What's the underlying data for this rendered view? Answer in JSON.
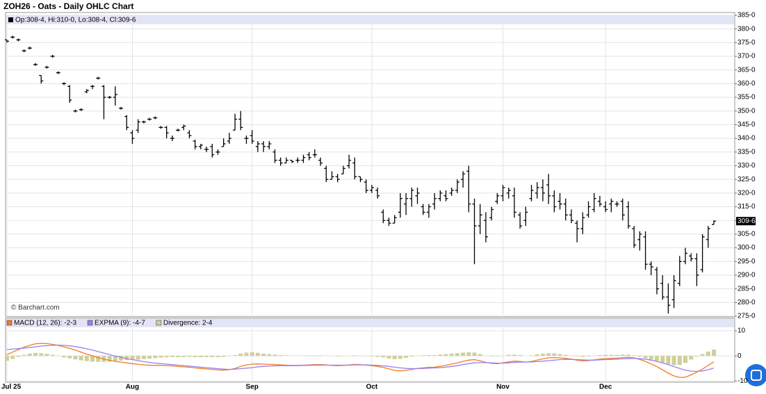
{
  "chart_data": [
    {
      "type": "ohlc",
      "title": "ZOH26 - Oats - Daily OHLC Chart",
      "info": "Op:308-4, Hi:310-0, Lo:308-4, Cl:309-6",
      "watermark": "© Barchart.com",
      "color": "#000000",
      "categories": [
        "Jul 25",
        null,
        null,
        null,
        null,
        null,
        null,
        null,
        null,
        null,
        null,
        null,
        null,
        null,
        null,
        null,
        null,
        null,
        null,
        null,
        null,
        null,
        "Aug",
        null,
        null,
        null,
        null,
        null,
        null,
        null,
        null,
        null,
        null,
        null,
        null,
        null,
        null,
        null,
        null,
        null,
        null,
        null,
        null,
        "Sep",
        null,
        null,
        null,
        null,
        null,
        null,
        null,
        null,
        null,
        null,
        null,
        null,
        null,
        null,
        null,
        null,
        null,
        null,
        null,
        null,
        "Oct",
        null,
        null,
        null,
        null,
        null,
        null,
        null,
        null,
        null,
        null,
        null,
        null,
        null,
        null,
        null,
        null,
        null,
        null,
        null,
        null,
        null,
        null,
        "Nov",
        null,
        null,
        null,
        null,
        null,
        null,
        null,
        null,
        null,
        null,
        null,
        null,
        null,
        null,
        null,
        null,
        null,
        "Dec",
        null,
        null,
        null,
        null,
        null,
        null,
        null,
        null,
        null,
        null,
        null,
        null,
        null,
        null,
        null,
        null,
        null,
        null,
        null
      ],
      "open": [
        376,
        377,
        376,
        372,
        373,
        367,
        363,
        366,
        370,
        364,
        360,
        359,
        350,
        350.5,
        357,
        359,
        362,
        359,
        355,
        355,
        351,
        348,
        342,
        343,
        346,
        347,
        347.5,
        344,
        344,
        340,
        343,
        344,
        342,
        339,
        337,
        336,
        337,
        335,
        337,
        339,
        343,
        347,
        340,
        341,
        337,
        338,
        337,
        335,
        332,
        331,
        332,
        332,
        332,
        334,
        334,
        332,
        329,
        325,
        326,
        327,
        330,
        331,
        326,
        324,
        321,
        321,
        313,
        310,
        309,
        313,
        316,
        318,
        319,
        315,
        313,
        316,
        318,
        319,
        320,
        321,
        325,
        328,
        316,
        308,
        310,
        311,
        317,
        319,
        320,
        319,
        312,
        310,
        318,
        320,
        322,
        323,
        319,
        317,
        316,
        312,
        309,
        307,
        312,
        314,
        317,
        315,
        316,
        316,
        317,
        315,
        307,
        303,
        304,
        294,
        292,
        287,
        282,
        281,
        287,
        295,
        297,
        296,
        292,
        303,
        308.5
      ],
      "high": [
        376,
        377.5,
        376.5,
        372.5,
        373.5,
        367.5,
        363,
        366.5,
        370.5,
        364.5,
        360.5,
        359.5,
        350.5,
        351,
        358,
        359.5,
        362.5,
        359.5,
        355.5,
        359,
        351.5,
        348.5,
        343,
        347,
        346.5,
        347.5,
        348,
        344.5,
        344.5,
        341,
        343.5,
        345,
        343,
        339.5,
        338,
        337,
        338,
        336,
        340,
        342,
        349,
        350,
        341,
        343,
        339,
        339,
        339,
        336,
        333,
        333,
        332,
        333,
        334,
        335,
        336,
        333,
        330,
        328,
        327,
        330,
        334,
        333,
        326,
        325,
        323,
        322,
        314,
        311,
        312,
        320,
        320,
        322,
        322,
        316,
        316,
        320,
        321,
        321,
        322,
        325,
        328,
        330,
        318,
        316,
        313,
        315,
        320,
        323,
        322,
        322,
        313,
        315,
        323,
        324,
        325,
        327,
        321,
        320,
        318,
        314,
        310,
        313,
        317,
        320,
        319,
        317,
        318,
        317,
        318,
        317,
        308,
        306,
        306,
        295,
        293,
        290,
        287,
        290,
        297,
        300,
        298,
        298,
        305,
        308,
        310
      ],
      "low": [
        375,
        376.5,
        375.5,
        371.5,
        372.5,
        366.5,
        360,
        365.5,
        369.5,
        363.5,
        359.5,
        353,
        349.5,
        350,
        356.5,
        358,
        361.5,
        347,
        354.5,
        352,
        350.5,
        343,
        338,
        342,
        345.5,
        346.5,
        347,
        343.5,
        340,
        339,
        342.5,
        343,
        340,
        336,
        336,
        335,
        333,
        334,
        337,
        338,
        343,
        343,
        338,
        338,
        335,
        335,
        336,
        331,
        330,
        331,
        331,
        331,
        331,
        332,
        333,
        330,
        324,
        325,
        324,
        327,
        329,
        325,
        324,
        320,
        320,
        318,
        309,
        308,
        309,
        311,
        312,
        315,
        316,
        312,
        311,
        314,
        317,
        317,
        319,
        320,
        322,
        313,
        294,
        305,
        302,
        310,
        316,
        317,
        318,
        311,
        307,
        308,
        317,
        318,
        317,
        316,
        313,
        314,
        310,
        309,
        302,
        305,
        311,
        313,
        315,
        313,
        313,
        315,
        310,
        307,
        300,
        299,
        292,
        290,
        283,
        281,
        276,
        278,
        286,
        294,
        295,
        286,
        291,
        300,
        308.5
      ],
      "close": [
        375.5,
        377,
        376,
        372,
        373,
        367,
        361,
        366,
        370,
        364,
        360,
        354,
        350,
        350.5,
        357.5,
        359,
        362,
        355,
        355,
        356,
        351,
        344,
        340,
        346,
        346,
        347,
        347.5,
        344,
        342,
        340,
        343,
        344.5,
        341,
        337,
        337.5,
        336,
        334,
        335,
        338,
        340,
        347,
        344,
        340,
        339,
        338,
        337,
        338,
        332,
        331,
        332,
        331.5,
        332,
        333,
        333,
        334,
        331,
        325,
        326,
        325,
        329,
        332,
        326,
        325,
        321,
        322,
        319,
        310,
        309,
        311,
        318,
        318,
        321,
        320,
        313,
        315,
        318,
        320,
        318,
        321,
        324,
        327,
        316,
        308,
        312,
        304,
        314,
        319,
        322,
        321,
        313,
        308,
        313,
        321,
        322,
        320,
        319,
        315,
        316,
        312,
        310,
        307,
        311,
        315,
        318,
        316,
        314,
        317,
        316,
        312,
        308,
        301,
        305,
        294,
        293,
        285,
        282,
        279,
        288,
        295,
        298,
        296,
        290,
        304,
        307,
        309.75
      ],
      "last_price": {
        "value": 309.75,
        "label": "309-6"
      },
      "ylim": [
        274.75,
        386
      ],
      "yticks": [
        {
          "value": 275,
          "label": "275-0"
        },
        {
          "value": 280,
          "label": "280-0"
        },
        {
          "value": 285,
          "label": "285-0"
        },
        {
          "value": 290,
          "label": "290-0"
        },
        {
          "value": 295,
          "label": "295-0"
        },
        {
          "value": 300,
          "label": "300-0"
        },
        {
          "value": 305,
          "label": "305-0"
        },
        {
          "value": 310,
          "label": "310-0"
        },
        {
          "value": 315,
          "label": "315-0"
        },
        {
          "value": 320,
          "label": "320-0"
        },
        {
          "value": 325,
          "label": "325-0"
        },
        {
          "value": 330,
          "label": "330-0"
        },
        {
          "value": 335,
          "label": "335-0"
        },
        {
          "value": 340,
          "label": "340-0"
        },
        {
          "value": 345,
          "label": "345-0"
        },
        {
          "value": 350,
          "label": "350-0"
        },
        {
          "value": 355,
          "label": "355-0"
        },
        {
          "value": 360,
          "label": "360-0"
        },
        {
          "value": 365,
          "label": "365-0"
        },
        {
          "value": 370,
          "label": "370-0"
        },
        {
          "value": 375,
          "label": "375-0"
        },
        {
          "value": 380,
          "label": "380-0"
        },
        {
          "value": 385,
          "label": "385-0"
        }
      ],
      "grid": true
    },
    {
      "type": "macd",
      "ylim": [
        -10.5,
        15
      ],
      "yticks": [
        -10,
        0,
        10
      ],
      "grid": true,
      "series": [
        {
          "name": "MACD (12, 26): -2-3",
          "kind": "line",
          "color": "#f47a20",
          "values": [
            0.5,
            1.5,
            2.5,
            3.5,
            4.2,
            4.8,
            5,
            4.9,
            4.6,
            4.2,
            3.6,
            3,
            2.3,
            1.5,
            0.7,
            0,
            -0.7,
            -1.3,
            -1.8,
            -2.2,
            -2.5,
            -2.8,
            -3.1,
            -3.4,
            -3.6,
            -3.7,
            -3.8,
            -3.8,
            -3.9,
            -4,
            -4.2,
            -4.4,
            -4.5,
            -4.8,
            -5,
            -5.2,
            -5.4,
            -5.6,
            -5.7,
            -5.5,
            -5,
            -4.2,
            -3.6,
            -3.3,
            -3.2,
            -3.3,
            -3.4,
            -3.5,
            -3.6,
            -3.7,
            -3.8,
            -3.8,
            -3.7,
            -3.6,
            -3.5,
            -3.5,
            -3.6,
            -3.8,
            -3.9,
            -3.8,
            -3.6,
            -3.4,
            -3.5,
            -3.7,
            -3.9,
            -4.2,
            -4.6,
            -5.2,
            -5.8,
            -6,
            -5.8,
            -5.4,
            -5,
            -4.8,
            -4.6,
            -4.5,
            -4.2,
            -3.8,
            -3.3,
            -2.8,
            -2.2,
            -1.7,
            -1.5,
            -2,
            -2.6,
            -3,
            -3.1,
            -2.8,
            -2.4,
            -2.1,
            -2.2,
            -2.5,
            -2.2,
            -1.7,
            -1.2,
            -0.8,
            -0.7,
            -0.8,
            -1,
            -1.3,
            -1.7,
            -2,
            -1.9,
            -1.6,
            -1.3,
            -1.1,
            -1,
            -0.9,
            -0.7,
            -0.6,
            -0.8,
            -1.4,
            -2.2,
            -3.2,
            -4.3,
            -5.6,
            -6.9,
            -8,
            -8.6,
            -8.5,
            -7.6,
            -6.5,
            -5.3,
            -3.8,
            -2.375
          ]
        },
        {
          "name": "EXPMA (9): -4-7",
          "kind": "line",
          "color": "#9a7ff0",
          "values": [
            2.5,
            2.7,
            2.9,
            3.1,
            3.3,
            3.6,
            3.9,
            4.1,
            4.2,
            4.3,
            4.2,
            4,
            3.7,
            3.3,
            2.8,
            2.3,
            1.7,
            1.1,
            0.5,
            -0.1,
            -0.6,
            -1.1,
            -1.5,
            -1.9,
            -2.3,
            -2.6,
            -2.9,
            -3.1,
            -3.3,
            -3.5,
            -3.7,
            -3.9,
            -4.1,
            -4.3,
            -4.5,
            -4.7,
            -4.9,
            -5.1,
            -5.3,
            -5.4,
            -5.3,
            -5.1,
            -4.9,
            -4.7,
            -4.4,
            -4.2,
            -4.1,
            -4,
            -3.9,
            -3.9,
            -3.9,
            -3.9,
            -3.8,
            -3.8,
            -3.7,
            -3.7,
            -3.7,
            -3.7,
            -3.7,
            -3.7,
            -3.7,
            -3.6,
            -3.6,
            -3.6,
            -3.7,
            -3.8,
            -4,
            -4.2,
            -4.5,
            -4.8,
            -5,
            -5.1,
            -5.1,
            -5,
            -4.9,
            -4.8,
            -4.7,
            -4.5,
            -4.2,
            -3.9,
            -3.5,
            -3.1,
            -2.8,
            -2.7,
            -2.7,
            -2.8,
            -2.9,
            -2.9,
            -2.8,
            -2.6,
            -2.5,
            -2.5,
            -2.4,
            -2.3,
            -2.1,
            -1.9,
            -1.7,
            -1.5,
            -1.4,
            -1.4,
            -1.5,
            -1.6,
            -1.7,
            -1.7,
            -1.6,
            -1.5,
            -1.4,
            -1.3,
            -1.2,
            -1.1,
            -1,
            -1.1,
            -1.3,
            -1.7,
            -2.2,
            -2.8,
            -3.5,
            -4.3,
            -5,
            -5.7,
            -6.1,
            -6.2,
            -6,
            -5.5,
            -4.875
          ]
        },
        {
          "name": "Divergence: 2-4",
          "kind": "bar",
          "color": "#cfcf9a",
          "values": [
            -2,
            -1.2,
            -0.4,
            0.4,
            0.9,
            1.2,
            1.1,
            0.8,
            0.4,
            -0.1,
            -0.6,
            -1,
            -1.4,
            -1.8,
            -2.1,
            -2.3,
            -2.4,
            -2.4,
            -2.3,
            -2.1,
            -1.9,
            -1.7,
            -1.6,
            -1.5,
            -1.3,
            -1.1,
            -0.9,
            -0.7,
            -0.6,
            -0.5,
            -0.5,
            -0.5,
            -0.4,
            -0.5,
            -0.5,
            -0.5,
            -0.5,
            -0.5,
            -0.4,
            -0.1,
            0.3,
            0.9,
            1.3,
            1.4,
            1.2,
            0.9,
            0.7,
            0.5,
            0.3,
            0.2,
            0.1,
            0.1,
            0.1,
            0.2,
            0.2,
            0.2,
            0.1,
            -0.1,
            -0.2,
            -0.1,
            0.1,
            0.2,
            0.1,
            -0.1,
            -0.2,
            -0.4,
            -0.6,
            -1,
            -1.3,
            -1.2,
            -0.8,
            -0.3,
            0.1,
            0.2,
            0.3,
            0.3,
            0.5,
            0.7,
            0.9,
            1.1,
            1.3,
            1.4,
            1.3,
            0.7,
            0.1,
            -0.2,
            -0.2,
            0.1,
            0.4,
            0.5,
            0.3,
            0,
            0.2,
            0.6,
            0.9,
            1.1,
            1,
            0.7,
            0.4,
            0.1,
            -0.2,
            -0.4,
            -0.2,
            0.1,
            0.3,
            0.4,
            0.4,
            0.4,
            0.5,
            0.5,
            0.2,
            -0.3,
            -0.9,
            -1.5,
            -2.1,
            -2.8,
            -3.4,
            -3.7,
            -3.6,
            -2.8,
            -1.5,
            -0.3,
            0.7,
            1.7,
            2.5
          ]
        }
      ]
    }
  ]
}
